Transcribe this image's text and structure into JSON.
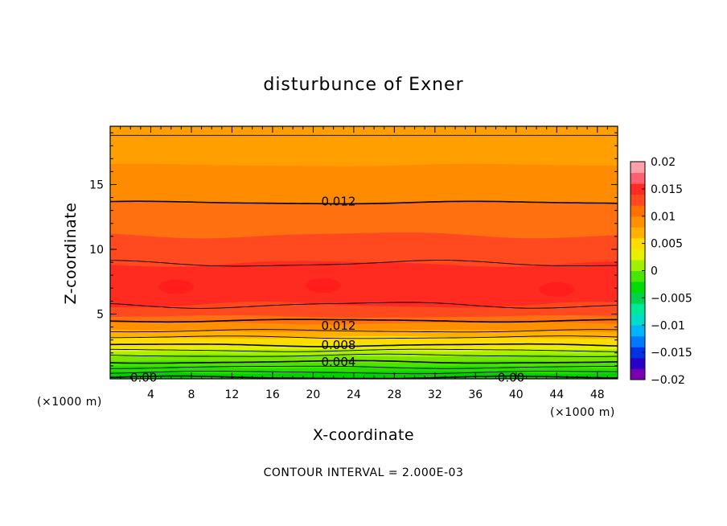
{
  "chart_data": {
    "type": "heatmap",
    "title": "disturbunce of Exner",
    "xlabel": "X-coordinate",
    "ylabel": "Z-coordinate",
    "x_unit_left": "(×1000 m)",
    "x_unit_right": "(×1000 m)",
    "footer": "CONTOUR INTERVAL = 2.000E-03",
    "xlim": [
      0,
      50
    ],
    "ylim": [
      0,
      19.5
    ],
    "x_ticks": [
      4,
      8,
      12,
      16,
      20,
      24,
      28,
      32,
      36,
      40,
      44,
      48
    ],
    "x_tick_labels": [
      "4",
      "8",
      "12",
      "16",
      "20",
      "24",
      "28",
      "32",
      "36",
      "40",
      "44",
      "48"
    ],
    "y_ticks": [
      5,
      10,
      15
    ],
    "y_tick_labels": [
      "5",
      "10",
      "15"
    ],
    "colorbar": {
      "range": [
        -0.02,
        0.02
      ],
      "tick_values": [
        0.02,
        0.015,
        0.01,
        0.005,
        0,
        -0.005,
        -0.01,
        -0.015,
        -0.02
      ],
      "tick_labels": [
        "0.02",
        "0.015",
        "0.01",
        "0.005",
        "0",
        "−0.005",
        "−0.01",
        "−0.015",
        "−0.02"
      ],
      "colors": [
        "#7a00b4",
        "#2800c8",
        "#0032e6",
        "#0078ff",
        "#00b4ff",
        "#00dcc8",
        "#00e89a",
        "#00d24c",
        "#00dc00",
        "#46e600",
        "#a0f000",
        "#e6f000",
        "#ffdc00",
        "#ffb000",
        "#ff9000",
        "#ff7000",
        "#ff4a20",
        "#ff2a20",
        "#ff6070",
        "#ffa0a8"
      ]
    },
    "contour_levels": [
      0,
      0.002,
      0.004,
      0.006,
      0.008,
      0.01,
      0.012,
      0.014,
      0.016,
      0.014,
      0.012,
      0.01,
      0.008
    ],
    "contour_labels": [
      {
        "text": "0.012",
        "x": 22.5,
        "z": 13.7
      },
      {
        "text": "0.012",
        "x": 22.5,
        "z": 4.1
      },
      {
        "text": "0.008",
        "x": 22.5,
        "z": 2.6
      },
      {
        "text": "0.004",
        "x": 22.5,
        "z": 1.3
      },
      {
        "text": "0.00",
        "x": 3.3,
        "z": 0.1
      },
      {
        "text": "0.00",
        "x": 39.5,
        "z": 0.1
      }
    ],
    "field_bands": [
      {
        "z_top": 19.5,
        "color": "#ffa000"
      },
      {
        "z_top": 18.8,
        "color": "#ffa000"
      },
      {
        "z_top": 16.5,
        "color": "#ff8c00"
      },
      {
        "z_top": 13.6,
        "color": "#ff7010"
      },
      {
        "z_top": 11.1,
        "color": "#ff4a20"
      },
      {
        "z_top": 8.9,
        "color": "#ff2a20"
      },
      {
        "z_top": 5.7,
        "color": "#ff4a20"
      },
      {
        "z_top": 4.8,
        "color": "#ff7010"
      },
      {
        "z_top": 4.3,
        "color": "#ff9000"
      },
      {
        "z_top": 3.7,
        "color": "#ffb000"
      },
      {
        "z_top": 3.2,
        "color": "#ffdc00"
      },
      {
        "z_top": 2.6,
        "color": "#e6f000"
      },
      {
        "z_top": 2.2,
        "color": "#a8f000"
      },
      {
        "z_top": 1.8,
        "color": "#78e600"
      },
      {
        "z_top": 1.3,
        "color": "#46e600"
      },
      {
        "z_top": 0.9,
        "color": "#28dc00"
      },
      {
        "z_top": 0.5,
        "color": "#00d200"
      }
    ]
  }
}
